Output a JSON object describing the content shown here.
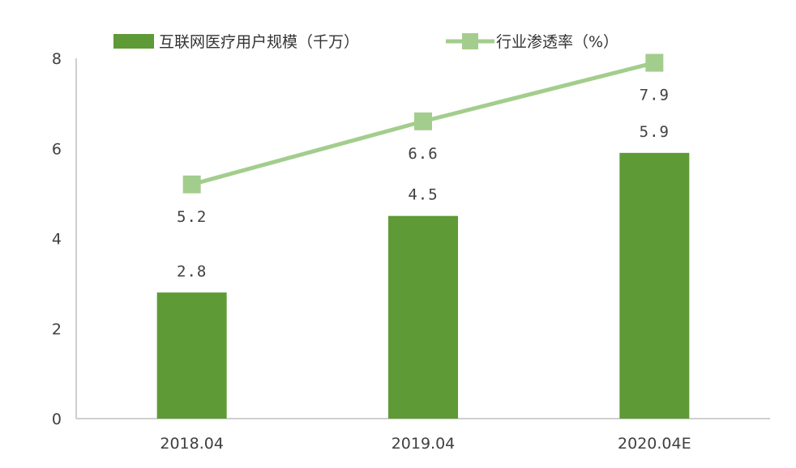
{
  "chart_data": {
    "type": "bar",
    "categories": [
      "2018.04",
      "2019.04",
      "2020.04E"
    ],
    "series": [
      {
        "name": "互联网医疗用户规模（千万）",
        "type": "bar",
        "values": [
          2.8,
          4.5,
          5.9
        ],
        "data_labels": [
          "2.8",
          "4.5",
          "5.9"
        ],
        "color": "#5e9a36"
      },
      {
        "name": "行业渗透率（%）",
        "type": "line",
        "values": [
          5.2,
          6.6,
          7.9
        ],
        "data_labels": [
          "5.2",
          "6.6",
          "7.9"
        ],
        "color": "#a3cd8d"
      }
    ],
    "y_ticks": [
      "0",
      "2",
      "4",
      "6",
      "8"
    ],
    "ylim": [
      0,
      8
    ],
    "grid": false,
    "legend_position": "top"
  }
}
